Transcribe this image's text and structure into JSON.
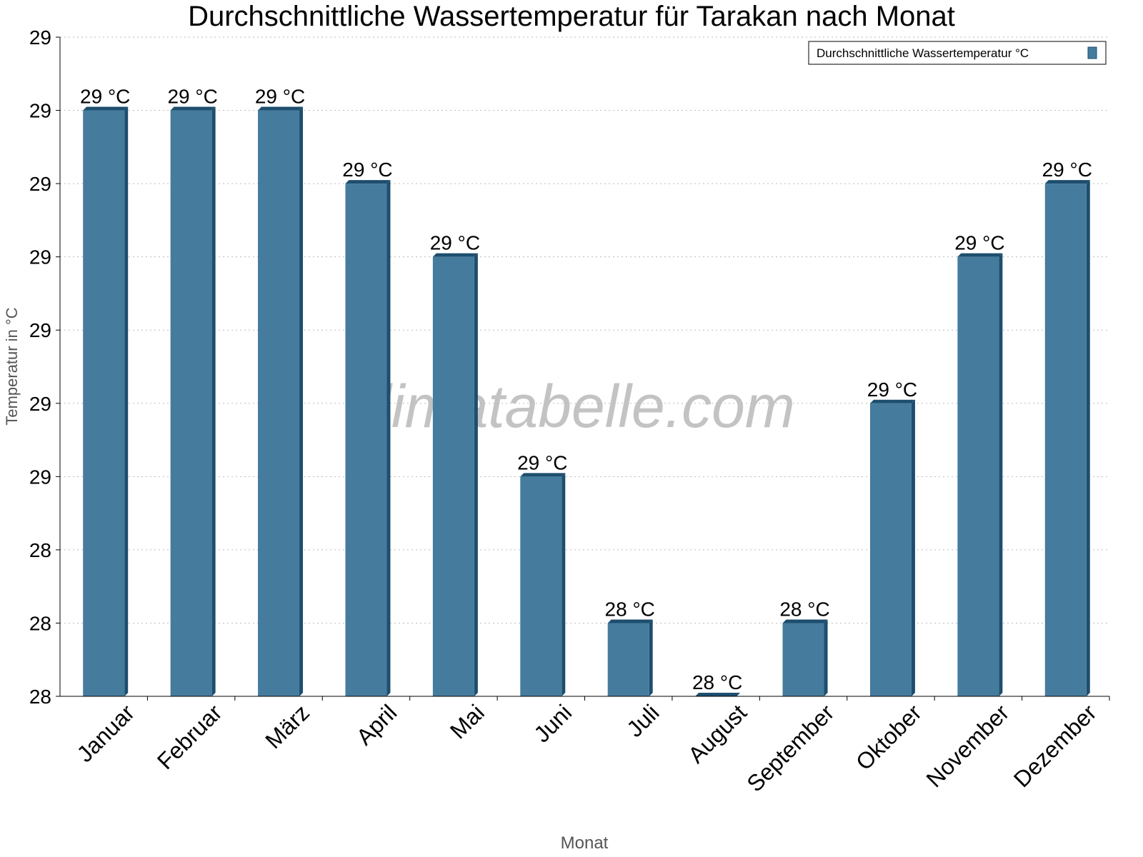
{
  "chart_data": {
    "type": "bar",
    "title": "Durchschnittliche Wassertemperatur für Tarakan nach Monat",
    "xlabel": "Monat",
    "ylabel": "Temperatur in °C",
    "legend": {
      "label": "Durchschnittliche Wassertemperatur °C",
      "placement": "top-right"
    },
    "watermark": "klimatabelle.com",
    "categories": [
      "Januar",
      "Februar",
      "März",
      "April",
      "Mai",
      "Juni",
      "Juli",
      "August",
      "September",
      "Oktober",
      "November",
      "Dezember"
    ],
    "values": [
      29.0,
      29.0,
      29.0,
      28.9,
      28.8,
      28.5,
      28.3,
      28.2,
      28.3,
      28.6,
      28.8,
      28.9
    ],
    "data_labels": [
      "29 °C",
      "29 °C",
      "29 °C",
      "29 °C",
      "29 °C",
      "29 °C",
      "28 °C",
      "28 °C",
      "28 °C",
      "29 °C",
      "29 °C",
      "29 °C"
    ],
    "ylim": [
      28.2,
      29.1
    ],
    "yticks": [
      28.2,
      28.3,
      28.4,
      28.5,
      28.6,
      28.7,
      28.8,
      28.9,
      29.0,
      29.1
    ],
    "ytick_labels": [
      "28",
      "28",
      "28",
      "29",
      "29",
      "29",
      "29",
      "29",
      "29",
      "29"
    ],
    "grid": true,
    "colors": {
      "bar": "#457b9d",
      "bar_side": "#1d4e6e"
    }
  }
}
